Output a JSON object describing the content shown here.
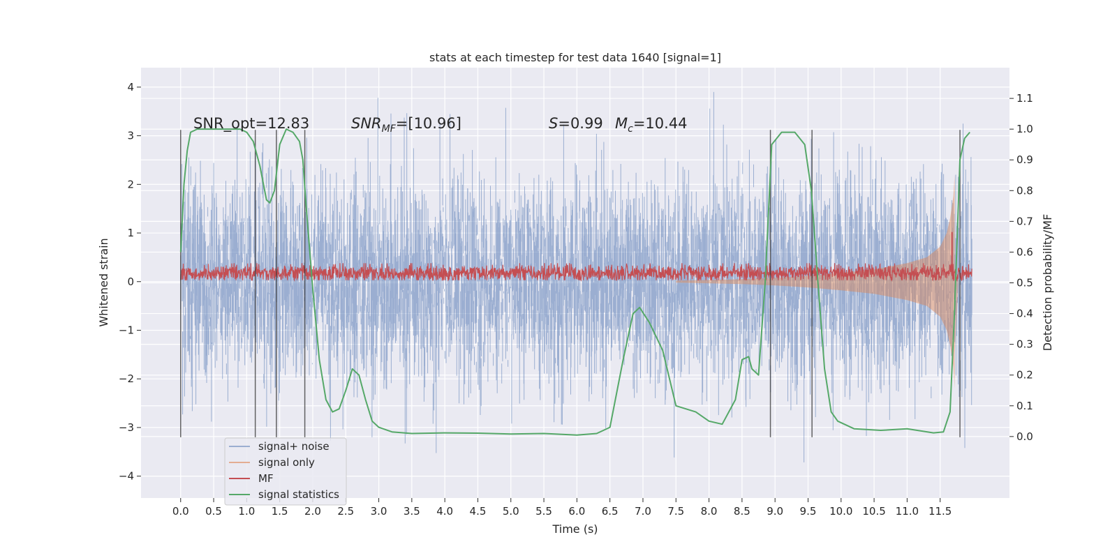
{
  "chart_data": {
    "type": "line",
    "title": "stats at each timestep for test data 1640 [signal=1]",
    "xlabel": "Time (s)",
    "ylabel_left": "Whitened strain",
    "ylabel_right": "Detection probability/MF",
    "xlim": [
      -0.6,
      12.55
    ],
    "ylim_left": [
      -4.45,
      4.4
    ],
    "ylim_right": [
      -0.2,
      1.2
    ],
    "x_ticks": [
      0.0,
      0.5,
      1.0,
      1.5,
      2.0,
      2.5,
      3.0,
      3.5,
      4.0,
      4.5,
      5.0,
      5.5,
      6.0,
      6.5,
      7.0,
      7.5,
      8.0,
      8.5,
      9.0,
      9.5,
      10.0,
      10.5,
      11.0,
      11.5
    ],
    "x_tick_labels": [
      "0.0",
      "0.5",
      "1.0",
      "1.5",
      "2.0",
      "2.5",
      "3.0",
      "3.5",
      "4.0",
      "4.5",
      "5.0",
      "5.5",
      "6.0",
      "6.5",
      "7.0",
      "7.5",
      "8.0",
      "8.5",
      "9.0",
      "9.5",
      "10.0",
      "10.5",
      "11.0",
      "11.5"
    ],
    "y_left_ticks": [
      -4,
      -3,
      -2,
      -1,
      0,
      1,
      2,
      3,
      4
    ],
    "y_left_tick_labels": [
      "−4",
      "−3",
      "−2",
      "−1",
      "0",
      "1",
      "2",
      "3",
      "4"
    ],
    "y_right_ticks": [
      0.0,
      0.1,
      0.2,
      0.3,
      0.4,
      0.5,
      0.6,
      0.7,
      0.8,
      0.9,
      1.0,
      1.1
    ],
    "y_right_tick_labels": [
      "0.0",
      "0.1",
      "0.2",
      "0.3",
      "0.4",
      "0.5",
      "0.6",
      "0.7",
      "0.8",
      "0.9",
      "1.0",
      "1.1"
    ],
    "grid": true,
    "legend_position": "lower-left",
    "annotations": {
      "snr_opt": "SNR_opt=12.83",
      "snr_mf_main": "SNR",
      "snr_mf_sub": "MF",
      "snr_mf_value": "=[10.96]",
      "s_symbol": "S",
      "s_value": "=0.99",
      "mc_symbol": "M",
      "mc_sub": "c",
      "mc_value": "=10.44"
    },
    "vertical_markers_x": [
      0.0,
      1.13,
      1.45,
      1.88,
      8.93,
      9.56,
      11.8
    ],
    "marker_range_left": [
      -3.2,
      3.12
    ],
    "series": [
      {
        "name": "signal+ noise",
        "axis": "left",
        "color": "#4c72b0",
        "style": "dense noise, amplitude about ±2.5 typical, extremes ±3.9",
        "x_range": [
          0.0,
          11.98
        ]
      },
      {
        "name": "signal only",
        "axis": "left",
        "color": "#dd8452",
        "style": "chirp envelope growing toward merger at ~11.7 s",
        "envelope": {
          "x": [
            7.5,
            8.5,
            9.0,
            9.5,
            10.0,
            10.5,
            11.0,
            11.3,
            11.5,
            11.6,
            11.65,
            11.7,
            11.72
          ],
          "y": [
            0.02,
            0.05,
            0.08,
            0.12,
            0.18,
            0.25,
            0.38,
            0.5,
            0.72,
            1.0,
            1.3,
            1.75,
            2.2
          ]
        }
      },
      {
        "name": "MF",
        "axis": "left",
        "color": "#c44e52",
        "style": "noise band around 0.2",
        "band": [
          0.05,
          0.3
        ],
        "spike": {
          "x": 11.68,
          "y": 1.02
        }
      },
      {
        "name": "signal statistics",
        "axis": "right",
        "color": "#55a868",
        "x": [
          0.0,
          0.05,
          0.1,
          0.15,
          0.25,
          0.4,
          0.6,
          0.8,
          0.9,
          1.0,
          1.1,
          1.2,
          1.3,
          1.35,
          1.42,
          1.5,
          1.6,
          1.7,
          1.8,
          1.85,
          1.9,
          2.0,
          2.1,
          2.2,
          2.3,
          2.4,
          2.5,
          2.6,
          2.7,
          2.8,
          2.9,
          3.0,
          3.2,
          3.5,
          4.0,
          4.5,
          5.0,
          5.5,
          6.0,
          6.3,
          6.5,
          6.7,
          6.85,
          6.95,
          7.1,
          7.3,
          7.5,
          7.8,
          8.0,
          8.2,
          8.4,
          8.5,
          8.6,
          8.65,
          8.75,
          8.85,
          8.95,
          9.1,
          9.3,
          9.45,
          9.55,
          9.65,
          9.75,
          9.85,
          9.95,
          10.2,
          10.6,
          11.0,
          11.4,
          11.55,
          11.65,
          11.72,
          11.8,
          11.87,
          11.95
        ],
        "y": [
          0.6,
          0.82,
          0.93,
          0.99,
          1.0,
          1.0,
          1.0,
          1.0,
          1.0,
          0.99,
          0.96,
          0.88,
          0.77,
          0.76,
          0.8,
          0.95,
          1.0,
          0.99,
          0.96,
          0.9,
          0.75,
          0.48,
          0.25,
          0.12,
          0.08,
          0.09,
          0.15,
          0.22,
          0.2,
          0.12,
          0.05,
          0.03,
          0.015,
          0.01,
          0.012,
          0.011,
          0.008,
          0.01,
          0.005,
          0.01,
          0.03,
          0.25,
          0.4,
          0.42,
          0.37,
          0.28,
          0.1,
          0.08,
          0.05,
          0.04,
          0.12,
          0.25,
          0.26,
          0.22,
          0.2,
          0.5,
          0.95,
          0.99,
          0.99,
          0.95,
          0.8,
          0.5,
          0.22,
          0.08,
          0.05,
          0.025,
          0.02,
          0.025,
          0.012,
          0.015,
          0.08,
          0.42,
          0.9,
          0.97,
          0.99
        ]
      }
    ]
  }
}
